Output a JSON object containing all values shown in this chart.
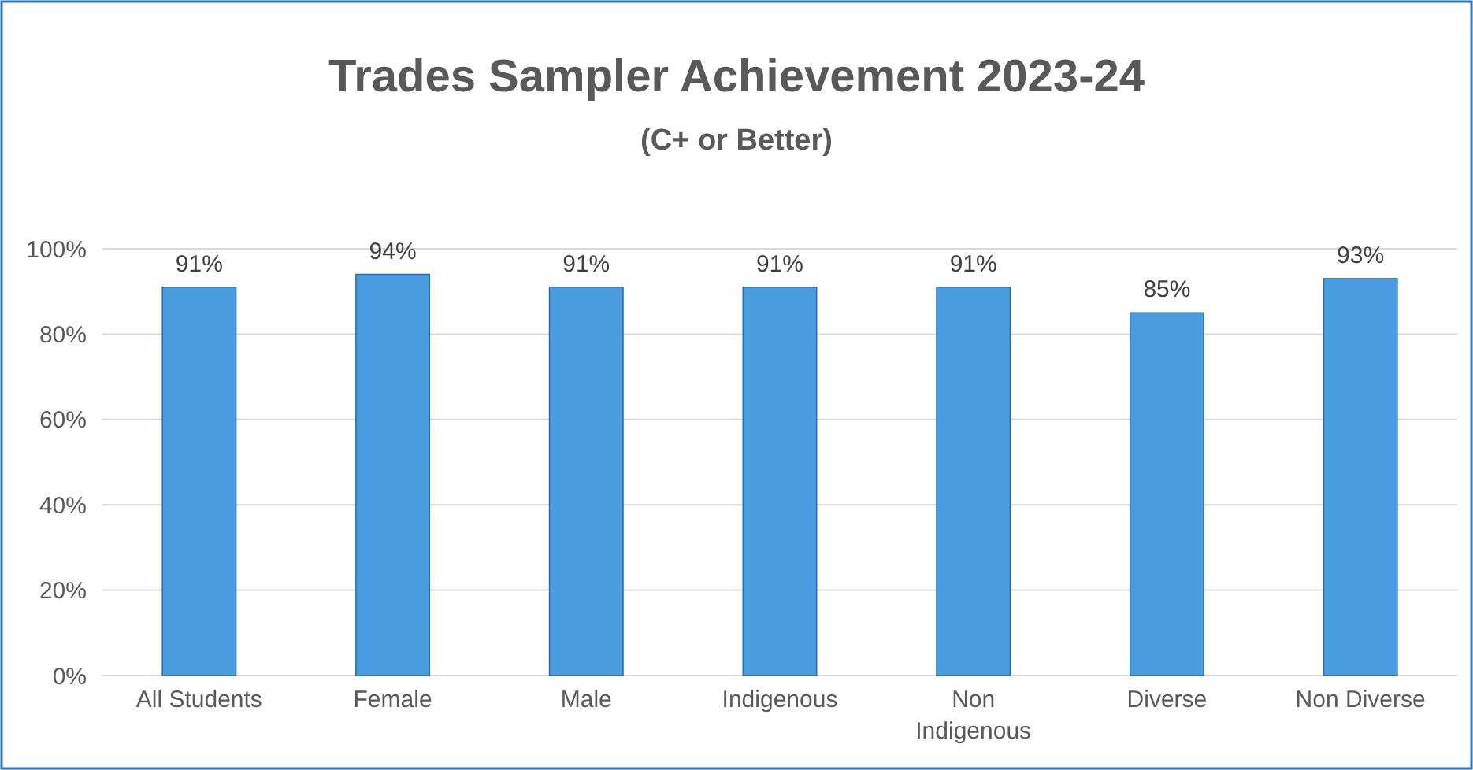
{
  "chart_data": {
    "type": "bar",
    "title": "Trades Sampler Achievement 2023-24",
    "subtitle": "(C+ or Better)",
    "categories": [
      "All Students",
      "Female",
      "Male",
      "Indigenous",
      "Non Indigenous",
      "Diverse",
      "Non Diverse"
    ],
    "values": [
      91,
      94,
      91,
      91,
      91,
      85,
      93
    ],
    "value_labels": [
      "91%",
      "94%",
      "91%",
      "91%",
      "91%",
      "85%",
      "93%"
    ],
    "color": "#4a9de0",
    "ylim": [
      0,
      100
    ],
    "yticks": [
      {
        "value": 0,
        "label": "0%"
      },
      {
        "value": 20,
        "label": "20%"
      },
      {
        "value": 40,
        "label": "40%"
      },
      {
        "value": 60,
        "label": "60%"
      },
      {
        "value": 80,
        "label": "80%"
      },
      {
        "value": 100,
        "label": "100%"
      }
    ],
    "grid": "y"
  }
}
